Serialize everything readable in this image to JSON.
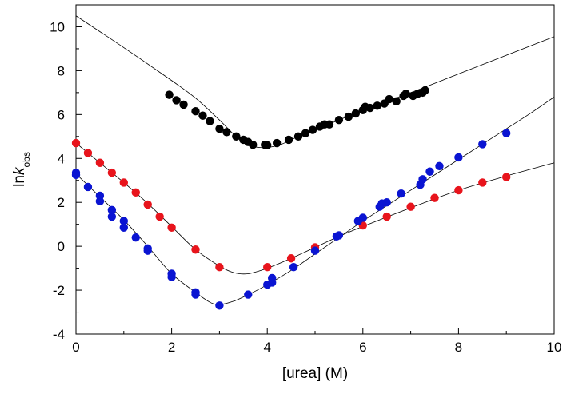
{
  "chart_data": {
    "type": "scatter",
    "xlabel": "[urea] (M)",
    "ylabel_main": "ln",
    "ylabel_italic": "k",
    "ylabel_sub": "obs",
    "xlim": [
      0,
      10
    ],
    "ylim": [
      -4,
      11
    ],
    "x_ticks": [
      0,
      2,
      4,
      6,
      8,
      10
    ],
    "y_ticks": [
      -4,
      -2,
      0,
      2,
      4,
      6,
      8,
      10
    ],
    "grid": false,
    "series": [
      {
        "color": "#000000",
        "points": [
          [
            1.95,
            6.9
          ],
          [
            2.1,
            6.65
          ],
          [
            2.25,
            6.45
          ],
          [
            2.5,
            6.15
          ],
          [
            2.65,
            5.95
          ],
          [
            2.8,
            5.7
          ],
          [
            3.0,
            5.35
          ],
          [
            3.15,
            5.2
          ],
          [
            3.35,
            5.0
          ],
          [
            3.5,
            4.85
          ],
          [
            3.6,
            4.75
          ],
          [
            3.7,
            4.62
          ],
          [
            3.95,
            4.62
          ],
          [
            4.0,
            4.6
          ],
          [
            4.2,
            4.7
          ],
          [
            4.45,
            4.85
          ],
          [
            4.65,
            5.0
          ],
          [
            4.8,
            5.15
          ],
          [
            4.95,
            5.3
          ],
          [
            5.1,
            5.45
          ],
          [
            5.2,
            5.55
          ],
          [
            5.3,
            5.55
          ],
          [
            5.5,
            5.75
          ],
          [
            5.7,
            5.9
          ],
          [
            5.85,
            6.05
          ],
          [
            6.0,
            6.2
          ],
          [
            6.05,
            6.35
          ],
          [
            6.15,
            6.3
          ],
          [
            6.3,
            6.4
          ],
          [
            6.45,
            6.5
          ],
          [
            6.55,
            6.7
          ],
          [
            6.7,
            6.6
          ],
          [
            6.85,
            6.85
          ],
          [
            6.9,
            6.95
          ],
          [
            7.05,
            6.85
          ],
          [
            7.15,
            6.95
          ],
          [
            7.25,
            7.0
          ],
          [
            7.3,
            7.1
          ]
        ],
        "fit": [
          [
            0,
            10.5
          ],
          [
            1,
            9.05
          ],
          [
            2,
            7.55
          ],
          [
            2.5,
            6.75
          ],
          [
            3,
            5.75
          ],
          [
            3.4,
            4.9
          ],
          [
            3.7,
            4.55
          ],
          [
            4,
            4.5
          ],
          [
            4.3,
            4.65
          ],
          [
            4.8,
            5.15
          ],
          [
            5.5,
            5.75
          ],
          [
            6,
            6.2
          ],
          [
            7,
            7.0
          ],
          [
            8,
            7.85
          ],
          [
            9,
            8.7
          ],
          [
            10,
            9.55
          ]
        ]
      },
      {
        "color": "#e8141c",
        "points": [
          [
            0,
            4.7
          ],
          [
            0.25,
            4.25
          ],
          [
            0.5,
            3.8
          ],
          [
            0.75,
            3.35
          ],
          [
            1.0,
            2.9
          ],
          [
            1.25,
            2.45
          ],
          [
            1.5,
            1.9
          ],
          [
            1.75,
            1.35
          ],
          [
            2.0,
            0.85
          ],
          [
            2.5,
            -0.15
          ],
          [
            3.0,
            -0.95
          ],
          [
            4.0,
            -0.95
          ],
          [
            4.5,
            -0.55
          ],
          [
            5.0,
            -0.05
          ],
          [
            6.0,
            0.95
          ],
          [
            6.5,
            1.35
          ],
          [
            7.0,
            1.8
          ],
          [
            7.5,
            2.2
          ],
          [
            8.0,
            2.55
          ],
          [
            8.5,
            2.9
          ],
          [
            9.0,
            3.15
          ]
        ],
        "fit": [
          [
            0,
            4.7
          ],
          [
            0.5,
            3.8
          ],
          [
            1,
            2.9
          ],
          [
            1.5,
            1.95
          ],
          [
            2,
            0.9
          ],
          [
            2.5,
            -0.15
          ],
          [
            3,
            -0.9
          ],
          [
            3.3,
            -1.2
          ],
          [
            3.6,
            -1.25
          ],
          [
            4,
            -1.0
          ],
          [
            4.5,
            -0.55
          ],
          [
            5,
            -0.05
          ],
          [
            5.5,
            0.45
          ],
          [
            6,
            0.9
          ],
          [
            7,
            1.75
          ],
          [
            8,
            2.55
          ],
          [
            9,
            3.2
          ],
          [
            10,
            3.8
          ]
        ]
      },
      {
        "color": "#0a14d2",
        "points": [
          [
            0,
            3.35
          ],
          [
            0,
            3.25
          ],
          [
            0.25,
            2.7
          ],
          [
            0.5,
            2.3
          ],
          [
            0.5,
            2.05
          ],
          [
            0.75,
            1.65
          ],
          [
            0.75,
            1.35
          ],
          [
            1.0,
            1.15
          ],
          [
            1.0,
            0.85
          ],
          [
            1.25,
            0.4
          ],
          [
            1.5,
            -0.1
          ],
          [
            1.5,
            -0.2
          ],
          [
            2.0,
            -1.25
          ],
          [
            2.0,
            -1.4
          ],
          [
            2.5,
            -2.1
          ],
          [
            2.5,
            -2.2
          ],
          [
            3.0,
            -2.7
          ],
          [
            3.6,
            -2.2
          ],
          [
            4.0,
            -1.75
          ],
          [
            4.1,
            -1.65
          ],
          [
            4.1,
            -1.45
          ],
          [
            4.55,
            -0.95
          ],
          [
            5.0,
            -0.2
          ],
          [
            5.45,
            0.45
          ],
          [
            5.5,
            0.5
          ],
          [
            5.9,
            1.15
          ],
          [
            6.0,
            1.3
          ],
          [
            6.35,
            1.8
          ],
          [
            6.4,
            1.95
          ],
          [
            6.5,
            2.0
          ],
          [
            6.8,
            2.4
          ],
          [
            7.2,
            2.8
          ],
          [
            7.25,
            3.05
          ],
          [
            7.4,
            3.4
          ],
          [
            7.6,
            3.65
          ],
          [
            8.0,
            4.05
          ],
          [
            8.5,
            4.65
          ],
          [
            9.0,
            5.15
          ]
        ],
        "fit": [
          [
            0,
            3.3
          ],
          [
            0.5,
            2.25
          ],
          [
            1,
            1.2
          ],
          [
            1.5,
            0.0
          ],
          [
            2,
            -1.25
          ],
          [
            2.5,
            -2.1
          ],
          [
            2.8,
            -2.55
          ],
          [
            3,
            -2.65
          ],
          [
            3.3,
            -2.5
          ],
          [
            3.7,
            -2.1
          ],
          [
            4,
            -1.75
          ],
          [
            4.5,
            -1.1
          ],
          [
            5,
            -0.35
          ],
          [
            5.5,
            0.4
          ],
          [
            6,
            1.15
          ],
          [
            6.5,
            1.85
          ],
          [
            7,
            2.55
          ],
          [
            7.5,
            3.25
          ],
          [
            8,
            3.95
          ],
          [
            8.5,
            4.65
          ],
          [
            9,
            5.35
          ],
          [
            9.5,
            6.05
          ],
          [
            10,
            6.8
          ]
        ]
      }
    ]
  }
}
